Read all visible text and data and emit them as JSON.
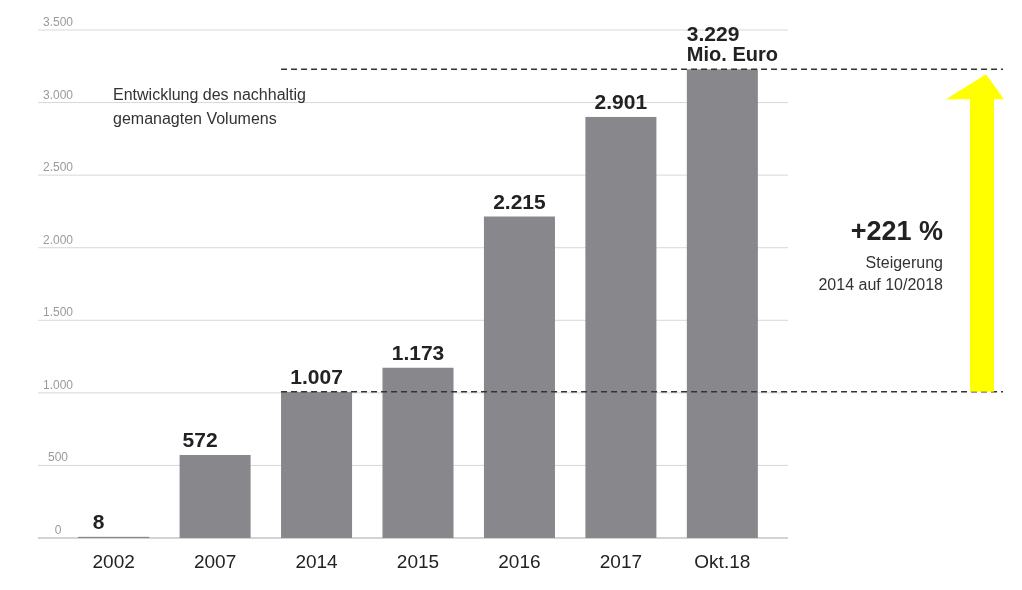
{
  "chart_data": {
    "type": "bar",
    "title": "Entwicklung des nachhaltig gemanagten Volumens",
    "categories": [
      "2002",
      "2007",
      "2014",
      "2015",
      "2016",
      "2017",
      "Okt.18"
    ],
    "values": [
      8,
      572,
      1007,
      1173,
      2215,
      2901,
      3229
    ],
    "value_labels": [
      "8",
      "572",
      "1.007",
      "1.173",
      "2.215",
      "2.901",
      "3.229"
    ],
    "color": "#88878c",
    "ylim": [
      0,
      3500
    ],
    "yticks": [
      {
        "value": 0,
        "label": "0"
      },
      {
        "value": 500,
        "label": "500"
      },
      {
        "value": 1000,
        "label": "1.000"
      },
      {
        "value": 1500,
        "label": "1.500"
      },
      {
        "value": 2000,
        "label": "2.000"
      },
      {
        "value": 2500,
        "label": "2.500"
      },
      {
        "value": 3000,
        "label": "3.000"
      },
      {
        "value": 3500,
        "label": "3.500"
      }
    ],
    "grid": "y",
    "ref_lines": [
      {
        "axis": "y",
        "value": 1007,
        "color": "#333333",
        "line_style": "dashed"
      },
      {
        "axis": "y",
        "value": 3229,
        "color": "#333333",
        "line_style": "dashed"
      }
    ],
    "annotations": [
      {
        "text": "Mio. Euro",
        "x": "Okt.18",
        "y": 3229
      },
      "+221 %",
      "Steigerung 2014 auf 10/2018"
    ]
  }
}
